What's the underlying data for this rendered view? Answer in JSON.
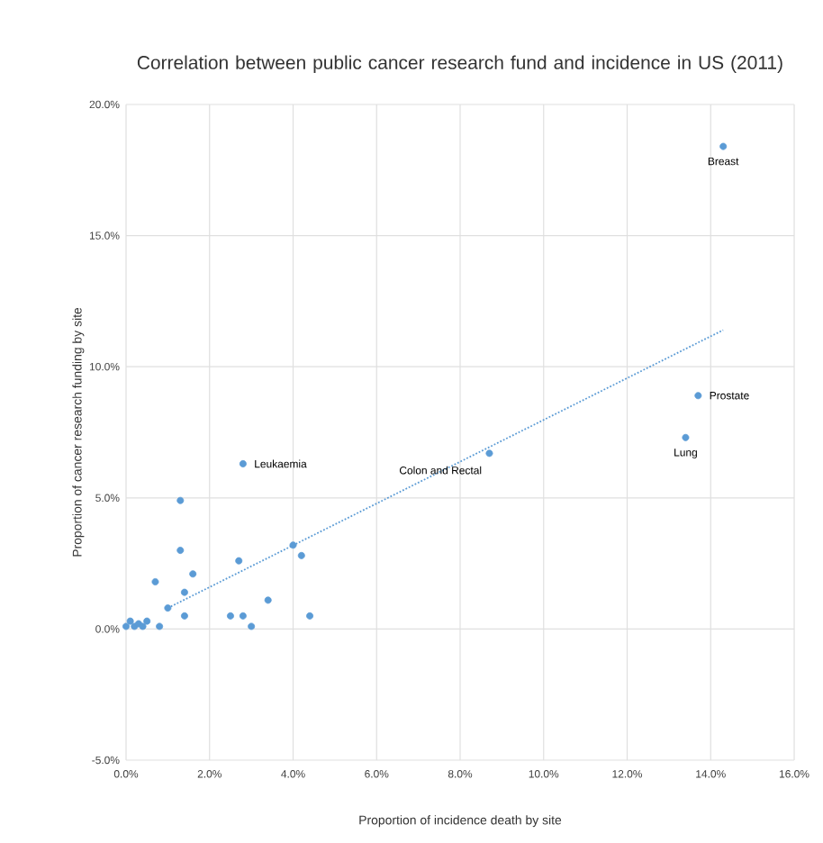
{
  "chart_data": {
    "type": "scatter",
    "title": "Correlation between public cancer research fund and incidence in US (2011)",
    "xlabel": "Proportion  of incidence death by site",
    "ylabel": "Proportion  of cancer research  funding by site",
    "xlim": [
      0,
      16
    ],
    "ylim": [
      -5,
      20
    ],
    "xticks": [
      {
        "value": 0,
        "label": "0.0%"
      },
      {
        "value": 2,
        "label": "2.0%"
      },
      {
        "value": 4,
        "label": "4.0%"
      },
      {
        "value": 6,
        "label": "6.0%"
      },
      {
        "value": 8,
        "label": "8.0%"
      },
      {
        "value": 10,
        "label": "10.0%"
      },
      {
        "value": 12,
        "label": "12.0%"
      },
      {
        "value": 14,
        "label": "14.0%"
      },
      {
        "value": 16,
        "label": "16.0%"
      }
    ],
    "yticks": [
      {
        "value": -5,
        "label": "-5.0%"
      },
      {
        "value": 0,
        "label": "0.0%"
      },
      {
        "value": 5,
        "label": "5.0%"
      },
      {
        "value": 10,
        "label": "10.0%"
      },
      {
        "value": 15,
        "label": "15.0%"
      },
      {
        "value": 20,
        "label": "20.0%"
      }
    ],
    "grid": true,
    "marker": "circle",
    "series": [
      {
        "color": "#5b9bd5",
        "x": [
          14.3,
          13.7,
          13.4,
          8.7,
          2.8,
          1.3,
          1.3,
          4.0,
          4.2,
          2.7,
          0.7,
          1.6,
          1.4,
          3.4,
          1.0,
          1.4,
          2.5,
          2.8,
          3.0,
          4.4,
          0.8,
          0.0,
          0.1,
          0.2,
          0.3,
          0.4,
          0.5
        ],
        "values": [
          18.4,
          8.9,
          7.3,
          6.7,
          6.3,
          4.9,
          3.0,
          3.2,
          2.8,
          2.6,
          1.8,
          2.1,
          1.4,
          1.1,
          0.8,
          0.5,
          0.5,
          0.5,
          0.1,
          0.5,
          0.1,
          0.1,
          0.3,
          0.1,
          0.2,
          0.1,
          0.3
        ]
      },
      {
        "type": "line",
        "color": "#5b9bd5",
        "line_style": "dotted",
        "marker": "none",
        "x": [
          1.0,
          14.3
        ],
        "values": [
          0.8,
          11.4
        ]
      }
    ],
    "annotations": [
      {
        "text": "Breast",
        "x": 14.3,
        "y": 18.4
      },
      {
        "text": "Prostate",
        "x": 13.7,
        "y": 8.9
      },
      {
        "text": "Lung",
        "x": 13.4,
        "y": 7.3
      },
      {
        "text": "Colon and Rectal",
        "x": 8.7,
        "y": 6.7
      },
      {
        "text": "Leukaemia",
        "x": 2.8,
        "y": 6.3
      }
    ]
  }
}
